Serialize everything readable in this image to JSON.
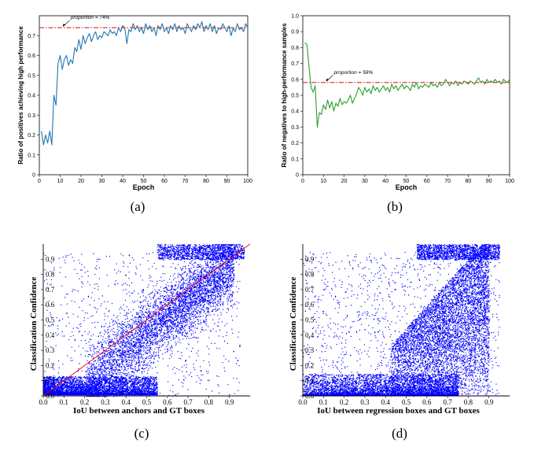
{
  "chart_data": [
    {
      "type": "line",
      "panel": "(a)",
      "xlabel": "Epoch",
      "ylabel": "Ratio of positives achieving high performance",
      "xlim": [
        0,
        100
      ],
      "ylim": [
        0,
        0.8
      ],
      "xticks": [
        0,
        10,
        20,
        30,
        40,
        50,
        60,
        70,
        80,
        90,
        100
      ],
      "yticks": [
        0,
        0.1,
        0.2,
        0.3,
        0.4,
        0.5,
        0.6,
        0.7
      ],
      "ytick_labels": [
        "0",
        "0.1",
        "0.2",
        "0.3",
        "0.4",
        "0.5",
        "0.6",
        "0.7"
      ],
      "series": [
        {
          "name": "ratio",
          "color": "#1f77b4",
          "x": [
            1,
            2,
            3,
            4,
            5,
            6,
            7,
            8,
            9,
            10,
            11,
            12,
            13,
            14,
            15,
            16,
            17,
            18,
            19,
            20,
            21,
            22,
            23,
            24,
            25,
            26,
            27,
            28,
            29,
            30,
            31,
            32,
            33,
            34,
            35,
            36,
            37,
            38,
            39,
            40,
            41,
            42,
            43,
            44,
            45,
            46,
            47,
            48,
            49,
            50,
            51,
            52,
            53,
            54,
            55,
            56,
            57,
            58,
            59,
            60,
            61,
            62,
            63,
            64,
            65,
            66,
            67,
            68,
            69,
            70,
            71,
            72,
            73,
            74,
            75,
            76,
            77,
            78,
            79,
            80,
            81,
            82,
            83,
            84,
            85,
            86,
            87,
            88,
            89,
            90,
            91,
            92,
            93,
            94,
            95,
            96,
            97,
            98,
            99,
            100
          ],
          "values": [
            0.22,
            0.15,
            0.2,
            0.16,
            0.22,
            0.15,
            0.4,
            0.35,
            0.56,
            0.6,
            0.53,
            0.58,
            0.6,
            0.55,
            0.58,
            0.56,
            0.64,
            0.62,
            0.68,
            0.63,
            0.7,
            0.66,
            0.69,
            0.71,
            0.67,
            0.7,
            0.72,
            0.68,
            0.7,
            0.69,
            0.72,
            0.71,
            0.7,
            0.73,
            0.71,
            0.72,
            0.7,
            0.74,
            0.72,
            0.75,
            0.74,
            0.66,
            0.73,
            0.72,
            0.76,
            0.73,
            0.75,
            0.72,
            0.74,
            0.71,
            0.76,
            0.73,
            0.75,
            0.72,
            0.74,
            0.7,
            0.75,
            0.73,
            0.76,
            0.72,
            0.74,
            0.71,
            0.75,
            0.73,
            0.76,
            0.72,
            0.75,
            0.73,
            0.74,
            0.71,
            0.76,
            0.74,
            0.72,
            0.75,
            0.73,
            0.76,
            0.74,
            0.77,
            0.72,
            0.75,
            0.73,
            0.76,
            0.72,
            0.75,
            0.71,
            0.74,
            0.73,
            0.76,
            0.74,
            0.72,
            0.75,
            0.7,
            0.74,
            0.72,
            0.76,
            0.73,
            0.74,
            0.72,
            0.76,
            0.74
          ]
        },
        {
          "name": "proportion",
          "type": "hline",
          "value": 0.74,
          "color": "#d62728"
        }
      ],
      "annotation": "proportion = 74%"
    },
    {
      "type": "line",
      "panel": "(b)",
      "xlabel": "Epoch",
      "ylabel": "Ratio of negatives to high-performance samples",
      "xlim": [
        0,
        100
      ],
      "ylim": [
        0,
        1.0
      ],
      "xticks": [
        0,
        10,
        20,
        30,
        40,
        50,
        60,
        70,
        80,
        90,
        100
      ],
      "yticks": [
        0,
        0.1,
        0.2,
        0.3,
        0.4,
        0.5,
        0.6,
        0.7,
        0.8,
        0.9,
        1.0
      ],
      "ytick_labels": [
        "0",
        "0.1",
        "0.2",
        "0.3",
        "0.4",
        "0.5",
        "0.6",
        "0.7",
        "0.8",
        "0.9",
        "1.0"
      ],
      "series": [
        {
          "name": "ratio",
          "color": "#2ca02c",
          "x": [
            1,
            2,
            3,
            4,
            5,
            6,
            7,
            8,
            9,
            10,
            11,
            12,
            13,
            14,
            15,
            16,
            17,
            18,
            19,
            20,
            21,
            22,
            23,
            24,
            25,
            26,
            27,
            28,
            29,
            30,
            31,
            32,
            33,
            34,
            35,
            36,
            37,
            38,
            39,
            40,
            41,
            42,
            43,
            44,
            45,
            46,
            47,
            48,
            49,
            50,
            51,
            52,
            53,
            54,
            55,
            56,
            57,
            58,
            59,
            60,
            61,
            62,
            63,
            64,
            65,
            66,
            67,
            68,
            69,
            70,
            71,
            72,
            73,
            74,
            75,
            76,
            77,
            78,
            79,
            80,
            81,
            82,
            83,
            84,
            85,
            86,
            87,
            88,
            89,
            90,
            91,
            92,
            93,
            94,
            95,
            96,
            97,
            98,
            99,
            100
          ],
          "values": [
            0.83,
            0.82,
            0.68,
            0.55,
            0.52,
            0.56,
            0.3,
            0.39,
            0.38,
            0.44,
            0.41,
            0.47,
            0.42,
            0.46,
            0.4,
            0.45,
            0.43,
            0.48,
            0.44,
            0.46,
            0.45,
            0.47,
            0.5,
            0.45,
            0.48,
            0.51,
            0.55,
            0.53,
            0.5,
            0.55,
            0.52,
            0.54,
            0.51,
            0.56,
            0.53,
            0.55,
            0.52,
            0.54,
            0.56,
            0.53,
            0.55,
            0.52,
            0.57,
            0.54,
            0.56,
            0.53,
            0.55,
            0.57,
            0.54,
            0.56,
            0.55,
            0.53,
            0.57,
            0.55,
            0.58,
            0.54,
            0.56,
            0.55,
            0.57,
            0.56,
            0.55,
            0.58,
            0.56,
            0.57,
            0.55,
            0.58,
            0.56,
            0.57,
            0.6,
            0.58,
            0.56,
            0.58,
            0.57,
            0.59,
            0.56,
            0.58,
            0.57,
            0.59,
            0.58,
            0.57,
            0.59,
            0.58,
            0.57,
            0.59,
            0.61,
            0.58,
            0.59,
            0.57,
            0.6,
            0.58,
            0.59,
            0.58,
            0.6,
            0.58,
            0.59,
            0.57,
            0.6,
            0.59,
            0.58,
            0.6
          ]
        },
        {
          "name": "proportion",
          "type": "hline",
          "value": 0.58,
          "color": "#d62728"
        }
      ],
      "annotation": "proportion = 58%"
    },
    {
      "type": "scatter",
      "panel": "(c)",
      "xlabel": "IoU between anchors and GT boxes",
      "ylabel": "Classification Confidence",
      "xlim": [
        0,
        1
      ],
      "ylim": [
        0,
        1
      ],
      "xticks": [
        0,
        0.1,
        0.2,
        0.3,
        0.4,
        0.5,
        0.6,
        0.7,
        0.8,
        0.9
      ],
      "yticks": [
        0,
        0.1,
        0.2,
        0.3,
        0.4,
        0.5,
        0.6,
        0.7,
        0.8,
        0.9
      ],
      "xtick_labels": [
        "0.0",
        "0.1",
        "0.2",
        "0.3",
        "0.4",
        "0.5",
        "0.6",
        "0.7",
        "0.8",
        "0.9"
      ],
      "ytick_labels": [
        "0.0",
        "0.1",
        "0.2",
        "0.3",
        "0.4",
        "0.5",
        "0.6",
        "0.7",
        "0.8",
        "0.9"
      ],
      "point_color": "#0000ff",
      "reference_line": {
        "from": [
          0,
          0
        ],
        "to": [
          1,
          1
        ],
        "color": "#ff0000"
      },
      "note": "dense cloud; ~12000 samples, confidence grows with IoU"
    },
    {
      "type": "scatter",
      "panel": "(d)",
      "xlabel": "IoU between regression boxes and GT boxes",
      "ylabel": "Classification Confidence",
      "xlim": [
        0,
        1
      ],
      "ylim": [
        0,
        1
      ],
      "xticks": [
        0,
        0.1,
        0.2,
        0.3,
        0.4,
        0.5,
        0.6,
        0.7,
        0.8,
        0.9
      ],
      "yticks": [
        0,
        0.1,
        0.2,
        0.3,
        0.4,
        0.5,
        0.6,
        0.7,
        0.8,
        0.9
      ],
      "xtick_labels": [
        "0.0",
        "0.1",
        "0.2",
        "0.3",
        "0.4",
        "0.5",
        "0.6",
        "0.7",
        "0.8",
        "0.9"
      ],
      "ytick_labels": [
        "0.0",
        "0.1",
        "0.2",
        "0.3",
        "0.4",
        "0.5",
        "0.6",
        "0.7",
        "0.8",
        "0.9"
      ],
      "point_color": "#0000ff",
      "note": "dense cloud; ~14000 samples, high IoU with wide confidence spread"
    }
  ]
}
